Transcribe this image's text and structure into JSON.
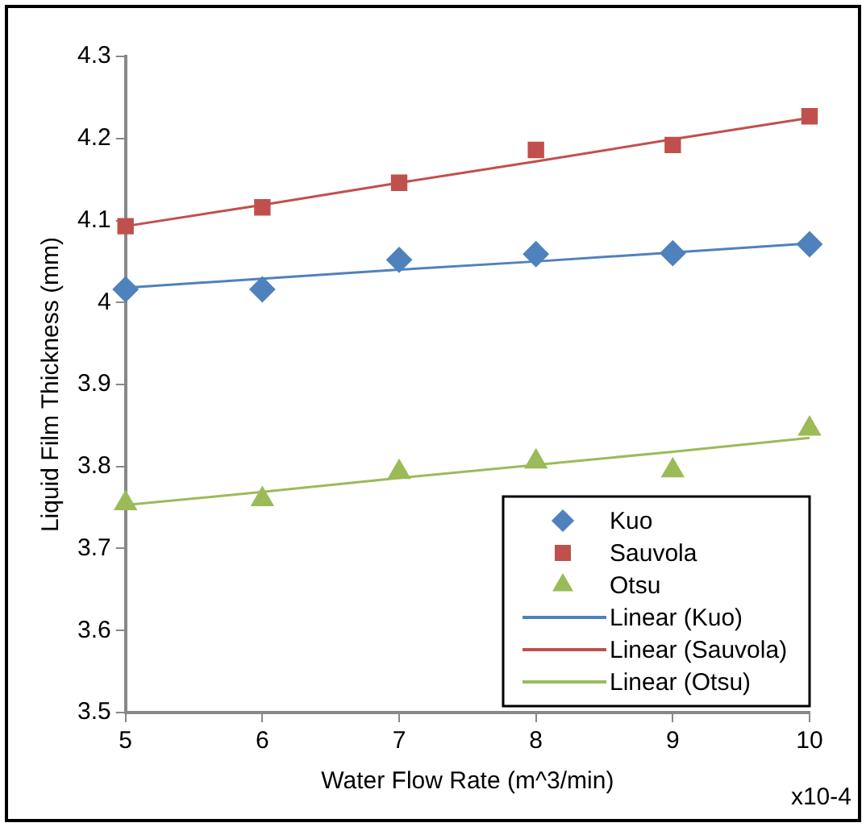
{
  "chart_data": {
    "type": "scatter",
    "xlabel": "Water Flow Rate (m^3/min)",
    "ylabel": "Liquid Film Thickness (mm)",
    "x": [
      5,
      6,
      7,
      8,
      9,
      10
    ],
    "series": [
      {
        "name": "Kuo",
        "color": "#4f81bd",
        "marker": "diamond",
        "values": [
          4.016,
          4.016,
          4.052,
          4.059,
          4.06,
          4.071
        ]
      },
      {
        "name": "Sauvola",
        "color": "#c0504d",
        "marker": "square",
        "values": [
          4.093,
          4.116,
          4.146,
          4.186,
          4.192,
          4.227
        ]
      },
      {
        "name": "Otsu",
        "color": "#9bbb59",
        "marker": "triangle",
        "values": [
          3.755,
          3.76,
          3.793,
          3.806,
          3.795,
          3.846
        ]
      },
      {
        "name": "Linear (Kuo)",
        "type": "line",
        "color": "#4f81bd",
        "marker": "none",
        "line_style": "solid",
        "values": [
          4.018,
          4.029,
          4.04,
          4.05,
          4.061,
          4.072
        ]
      },
      {
        "name": "Linear (Sauvola)",
        "type": "line",
        "color": "#c0504d",
        "marker": "none",
        "line_style": "solid",
        "values": [
          4.093,
          4.119,
          4.146,
          4.172,
          4.199,
          4.225
        ]
      },
      {
        "name": "Linear (Otsu)",
        "type": "line",
        "color": "#9bbb59",
        "marker": "none",
        "line_style": "solid",
        "values": [
          3.753,
          3.769,
          3.786,
          3.802,
          3.818,
          3.835
        ]
      }
    ],
    "xlim": [
      5,
      10
    ],
    "xticks": [
      5,
      6,
      7,
      8,
      9,
      10
    ],
    "ylim": [
      3.5,
      4.3
    ],
    "yticks": [
      3.5,
      3.6,
      3.7,
      3.8,
      3.9,
      4,
      4.1,
      4.2,
      4.3
    ],
    "grid": false,
    "legend": "bottom right",
    "annotations": [
      "x10-4"
    ]
  }
}
